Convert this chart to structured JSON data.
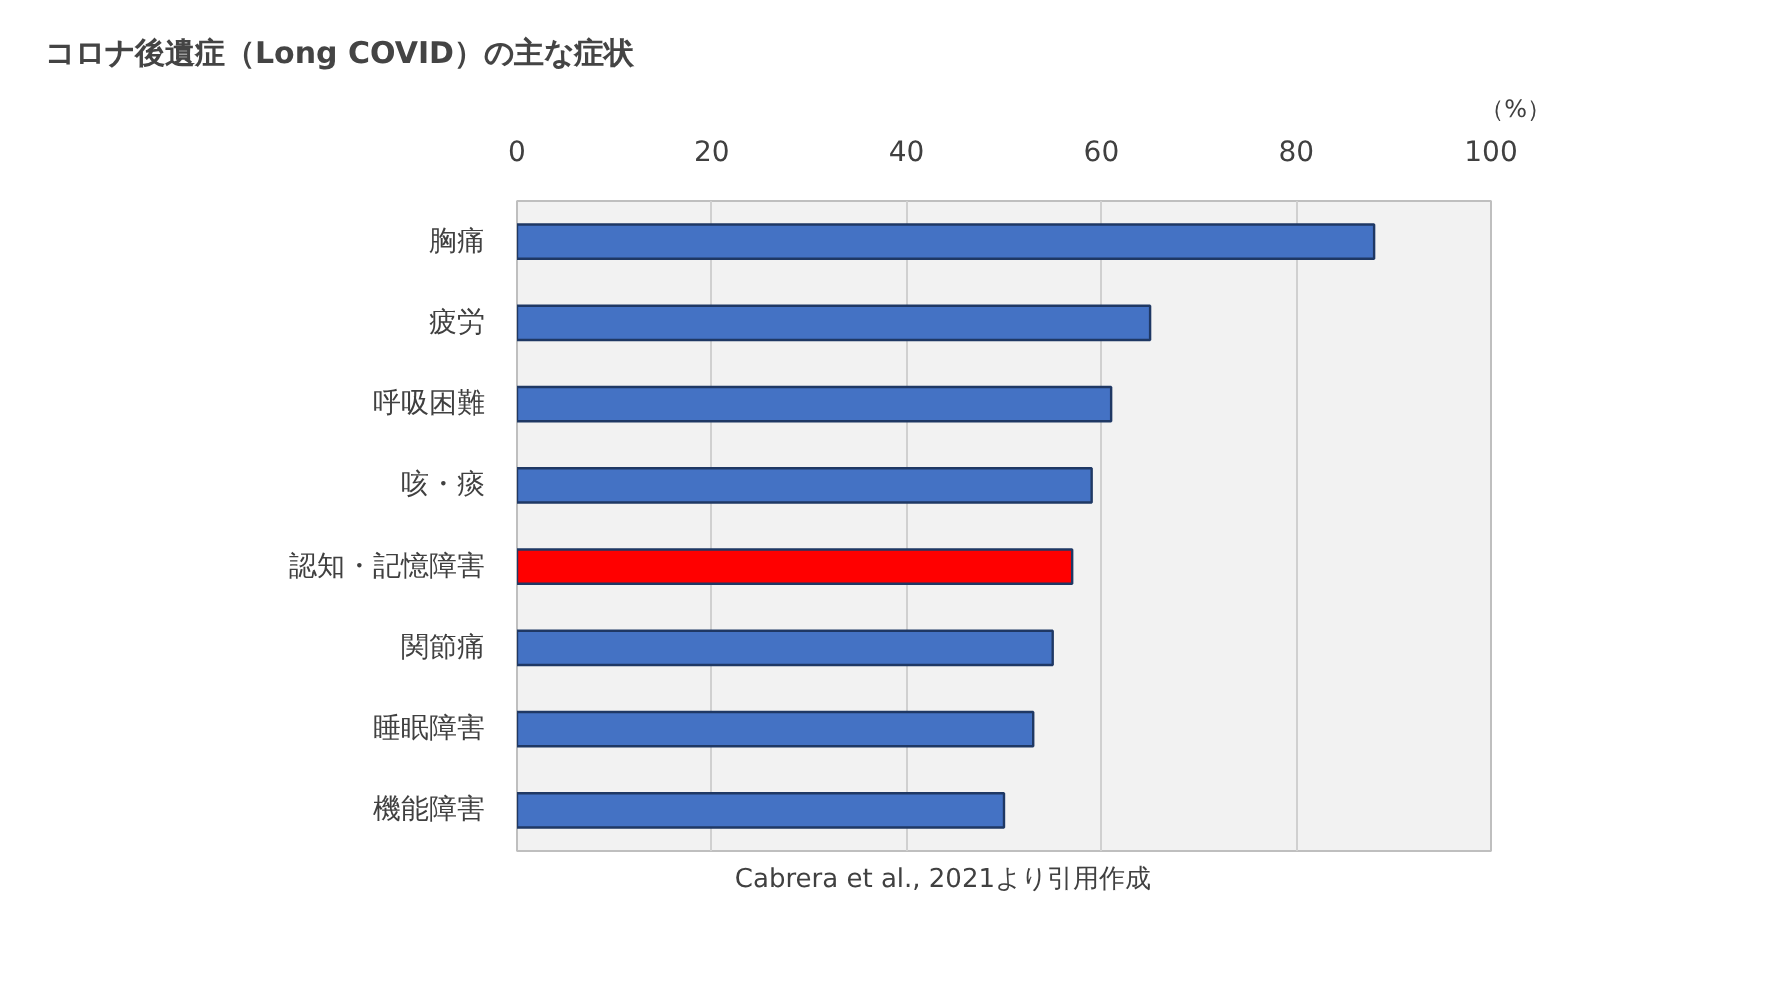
{
  "chart_data": {
    "type": "bar",
    "orientation": "horizontal",
    "title": "コロナ後遺症（Long COVID）の主な症状",
    "xlabel": "（%）",
    "categories": [
      "胸痛",
      "疲労",
      "呼吸困難",
      "咳・痰",
      "認知・記憶障害",
      "関節痛",
      "睡眠障害",
      "機能障害"
    ],
    "values": [
      88,
      65,
      61,
      59,
      57,
      55,
      53,
      50
    ],
    "colors": [
      "#4472c4",
      "#4472c4",
      "#4472c4",
      "#4472c4",
      "#ff0000",
      "#4472c4",
      "#4472c4",
      "#4472c4"
    ],
    "xlim": [
      0,
      100
    ],
    "xticks": [
      0,
      20,
      40,
      60,
      80,
      100
    ],
    "grid": "x",
    "annotations": [
      "Cabrera et al., 2021より引用作成"
    ]
  }
}
